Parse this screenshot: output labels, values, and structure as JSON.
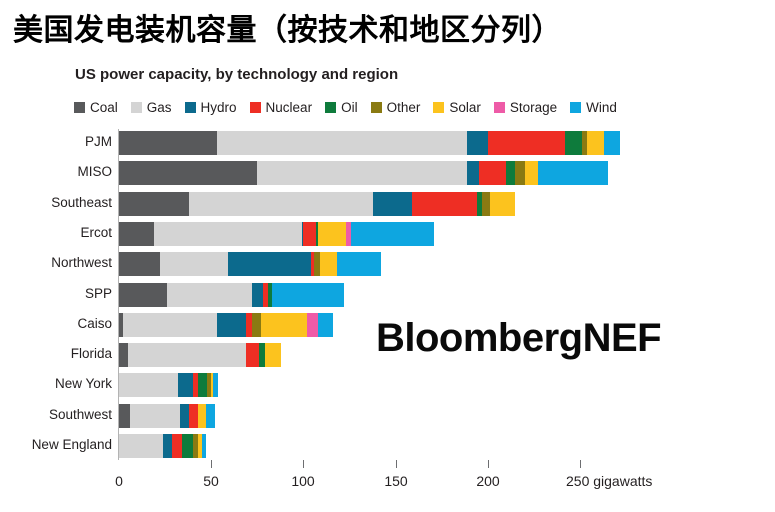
{
  "page_title": "美国发电装机容量（按技术和地区分列）",
  "watermark": "BloombergNEF",
  "chart_data": {
    "type": "bar",
    "orientation": "horizontal",
    "stacked": true,
    "title": "US power capacity, by technology and region",
    "xlabel": "gigawatts",
    "xlim": [
      0,
      250
    ],
    "x_ticks": [
      0,
      50,
      100,
      150,
      200,
      250
    ],
    "x_tick_labels": [
      "0",
      "50",
      "100",
      "150",
      "200",
      "250 gigawatts"
    ],
    "grid": false,
    "legend_position": "top",
    "categories": [
      "PJM",
      "MISO",
      "Southeast",
      "Ercot",
      "Northwest",
      "SPP",
      "Caiso",
      "Florida",
      "New York",
      "Southwest",
      "New England"
    ],
    "series": [
      {
        "name": "Coal",
        "color": "#58595b",
        "values": [
          53,
          75,
          38,
          19,
          22,
          26,
          2,
          5,
          0,
          6,
          0
        ]
      },
      {
        "name": "Gas",
        "color": "#d4d4d4",
        "values": [
          136,
          114,
          100,
          80,
          37,
          46,
          51,
          64,
          32,
          27,
          24
        ]
      },
      {
        "name": "Hydro",
        "color": "#0c6a8d",
        "values": [
          11,
          6,
          21,
          1,
          45,
          6,
          16,
          0,
          8,
          5,
          5
        ]
      },
      {
        "name": "Nuclear",
        "color": "#ee2e24",
        "values": [
          42,
          15,
          35,
          7,
          2,
          3,
          3,
          7,
          3,
          5,
          5
        ]
      },
      {
        "name": "Oil",
        "color": "#0e7b3c",
        "values": [
          9,
          5,
          3,
          1,
          0,
          2,
          0,
          3,
          5,
          0,
          6
        ]
      },
      {
        "name": "Other",
        "color": "#8a7a12",
        "values": [
          3,
          5,
          4,
          0,
          3,
          0,
          5,
          0,
          2,
          0,
          3
        ]
      },
      {
        "name": "Solar",
        "color": "#fcc31e",
        "values": [
          9,
          7,
          14,
          15,
          9,
          0,
          25,
          9,
          1,
          4,
          2
        ]
      },
      {
        "name": "Storage",
        "color": "#ee5ba7",
        "values": [
          0,
          0,
          0,
          3,
          0,
          0,
          6,
          0,
          0,
          0,
          0
        ]
      },
      {
        "name": "Wind",
        "color": "#0ea6e0",
        "values": [
          9,
          38,
          0,
          45,
          24,
          39,
          8,
          0,
          3,
          5,
          2
        ]
      }
    ]
  }
}
